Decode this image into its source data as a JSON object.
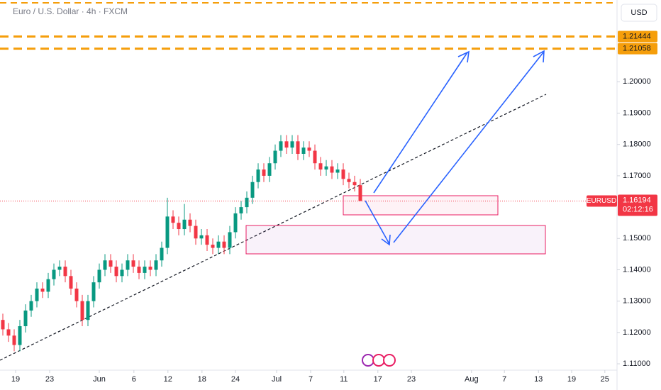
{
  "chart_data": {
    "type": "candlestick",
    "title": "Euro / U.S. Dollar · 4h · FXCM",
    "currency": "USD",
    "symbol": "EURUSD",
    "last_price": 1.16194,
    "countdown": "02:12:16",
    "up_color": "#089981",
    "down_color": "#f23645",
    "level_color": "#f59e0b",
    "levels": [
      1.21444,
      1.21058
    ],
    "grid": false,
    "xlim": [
      -0.5,
      108.25
    ],
    "ylim": [
      1.1039,
      1.2261
    ],
    "xticks": [
      {
        "value": 2.25,
        "label": "19"
      },
      {
        "value": 8.25,
        "label": "23"
      },
      {
        "value": 17,
        "label": "Jun"
      },
      {
        "value": 23.1,
        "label": "6"
      },
      {
        "value": 29.1,
        "label": "12"
      },
      {
        "value": 35.1,
        "label": "18"
      },
      {
        "value": 41,
        "label": "24"
      },
      {
        "value": 48.25,
        "label": "Jul"
      },
      {
        "value": 54.25,
        "label": "7"
      },
      {
        "value": 60.1,
        "label": "11"
      },
      {
        "value": 66.1,
        "label": "17"
      },
      {
        "value": 72,
        "label": "23"
      },
      {
        "value": 82.6,
        "label": "Aug"
      },
      {
        "value": 88.4,
        "label": "7"
      },
      {
        "value": 94.4,
        "label": "13"
      },
      {
        "value": 100.25,
        "label": "19"
      },
      {
        "value": 106.1,
        "label": "25"
      }
    ],
    "yticks": [
      {
        "value": 1.11,
        "label": "1.11000"
      },
      {
        "value": 1.12,
        "label": "1.12000"
      },
      {
        "value": 1.13,
        "label": "1.13000"
      },
      {
        "value": 1.14,
        "label": "1.14000"
      },
      {
        "value": 1.15,
        "label": "1.15000"
      },
      {
        "value": 1.17,
        "label": "1.17000"
      },
      {
        "value": 1.18,
        "label": "1.18000"
      },
      {
        "value": 1.19,
        "label": "1.19000"
      },
      {
        "value": 1.2,
        "label": "1.20000"
      }
    ],
    "x": [
      0,
      1,
      2,
      3,
      4,
      5,
      6,
      7,
      8,
      9,
      10,
      11,
      12,
      13,
      14,
      15,
      16,
      17,
      18,
      19,
      20,
      21,
      22,
      23,
      24,
      25,
      26,
      27,
      28,
      29,
      30,
      31,
      32,
      33,
      34,
      35,
      36,
      37,
      38,
      39,
      40,
      41,
      42,
      43,
      44,
      45,
      46,
      47,
      48,
      49,
      50,
      51,
      52,
      53,
      54,
      55,
      56,
      57,
      58,
      59,
      60,
      61,
      62,
      63
    ],
    "open": [
      1.124,
      1.121,
      1.119,
      1.116,
      1.122,
      1.127,
      1.13,
      1.134,
      1.133,
      1.137,
      1.14,
      1.141,
      1.138,
      1.134,
      1.13,
      1.124,
      1.13,
      1.136,
      1.14,
      1.143,
      1.141,
      1.138,
      1.14,
      1.143,
      1.141,
      1.139,
      1.141,
      1.14,
      1.143,
      1.147,
      1.157,
      1.155,
      1.153,
      1.156,
      1.154,
      1.15,
      1.151,
      1.148,
      1.147,
      1.149,
      1.147,
      1.152,
      1.158,
      1.16,
      1.163,
      1.168,
      1.172,
      1.17,
      1.174,
      1.178,
      1.181,
      1.179,
      1.181,
      1.177,
      1.179,
      1.178,
      1.174,
      1.172,
      1.173,
      1.171,
      1.172,
      1.169,
      1.168,
      1.167
    ],
    "high": [
      1.126,
      1.123,
      1.121,
      1.124,
      1.129,
      1.132,
      1.136,
      1.136,
      1.139,
      1.142,
      1.143,
      1.143,
      1.14,
      1.136,
      1.132,
      1.132,
      1.138,
      1.142,
      1.145,
      1.145,
      1.143,
      1.142,
      1.145,
      1.145,
      1.143,
      1.143,
      1.143,
      1.145,
      1.149,
      1.163,
      1.159,
      1.157,
      1.161,
      1.158,
      1.156,
      1.153,
      1.153,
      1.15,
      1.151,
      1.151,
      1.154,
      1.16,
      1.162,
      1.165,
      1.17,
      1.174,
      1.174,
      1.176,
      1.18,
      1.183,
      1.183,
      1.183,
      1.183,
      1.181,
      1.181,
      1.18,
      1.176,
      1.175,
      1.175,
      1.174,
      1.174,
      1.171,
      1.17,
      1.169
    ],
    "low": [
      1.119,
      1.117,
      1.114,
      1.114,
      1.12,
      1.125,
      1.128,
      1.131,
      1.131,
      1.135,
      1.138,
      1.136,
      1.132,
      1.128,
      1.122,
      1.122,
      1.128,
      1.134,
      1.138,
      1.139,
      1.136,
      1.136,
      1.138,
      1.139,
      1.137,
      1.137,
      1.138,
      1.138,
      1.141,
      1.145,
      1.153,
      1.151,
      1.151,
      1.152,
      1.148,
      1.148,
      1.146,
      1.145,
      1.145,
      1.145,
      1.145,
      1.15,
      1.156,
      1.158,
      1.161,
      1.166,
      1.168,
      1.168,
      1.172,
      1.176,
      1.177,
      1.177,
      1.175,
      1.175,
      1.176,
      1.172,
      1.17,
      1.17,
      1.169,
      1.169,
      1.167,
      1.166,
      1.165,
      1.16194
    ],
    "close": [
      1.121,
      1.119,
      1.116,
      1.122,
      1.127,
      1.13,
      1.134,
      1.133,
      1.137,
      1.14,
      1.141,
      1.138,
      1.134,
      1.13,
      1.124,
      1.13,
      1.136,
      1.14,
      1.143,
      1.141,
      1.138,
      1.14,
      1.143,
      1.141,
      1.139,
      1.141,
      1.14,
      1.143,
      1.147,
      1.157,
      1.155,
      1.153,
      1.156,
      1.154,
      1.15,
      1.151,
      1.148,
      1.147,
      1.149,
      1.147,
      1.152,
      1.158,
      1.16,
      1.163,
      1.168,
      1.172,
      1.17,
      1.174,
      1.178,
      1.181,
      1.179,
      1.181,
      1.177,
      1.179,
      1.178,
      1.174,
      1.172,
      1.173,
      1.171,
      1.172,
      1.169,
      1.168,
      1.167,
      1.16194
    ]
  }
}
